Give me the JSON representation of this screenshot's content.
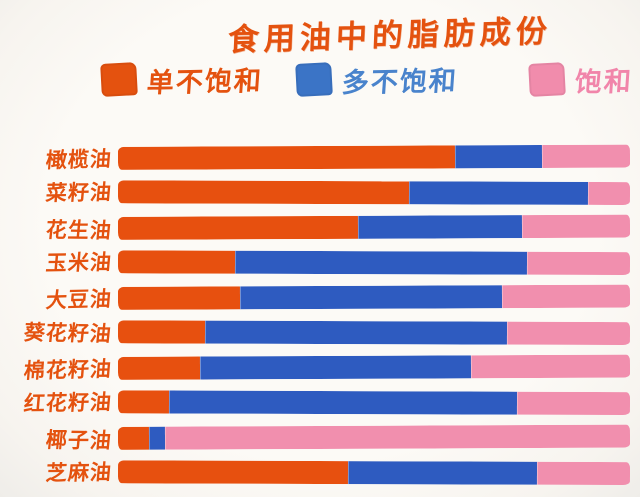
{
  "title": "食用油中的脂肪成份",
  "legend": [
    {
      "key": "mono",
      "label": "单不饱和",
      "chip_color": "#e4520f",
      "text_color": "#e4520f"
    },
    {
      "key": "poly",
      "label": "多不饱和",
      "chip_color": "#3b74c6",
      "text_color": "#4983cc"
    },
    {
      "key": "sat",
      "label": "饱和",
      "chip_color": "#f18cac",
      "text_color": "#f185aa"
    }
  ],
  "colors": {
    "background": "#fbf8f4",
    "bar_mono": "#e7500f",
    "bar_poly": "#2e5bc0",
    "bar_sat": "#f18fae",
    "title_text": "#e4520f",
    "label_text": "#e4520f"
  },
  "chart_data": {
    "type": "bar",
    "orientation": "horizontal",
    "stacked": true,
    "unit": "percent",
    "title": "食用油中的脂肪成份",
    "xlabel": "",
    "ylabel": "",
    "xlim": [
      0,
      100
    ],
    "grid": false,
    "legend_position": "top",
    "categories": [
      "橄榄油",
      "菜籽油",
      "花生油",
      "玉米油",
      "大豆油",
      "葵花籽油",
      "棉花籽油",
      "红花籽油",
      "椰子油",
      "芝麻油"
    ],
    "series": [
      {
        "name": "单不饱和",
        "color": "#e7500f",
        "values": [
          66,
          57,
          47,
          23,
          24,
          17,
          16,
          10,
          6,
          45
        ]
      },
      {
        "name": "多不饱和",
        "color": "#2e5bc0",
        "values": [
          17,
          35,
          32,
          57,
          51,
          59,
          53,
          68,
          3,
          37
        ]
      },
      {
        "name": "饱和",
        "color": "#f18fae",
        "values": [
          17,
          8,
          21,
          20,
          25,
          24,
          31,
          22,
          91,
          18
        ]
      }
    ]
  }
}
